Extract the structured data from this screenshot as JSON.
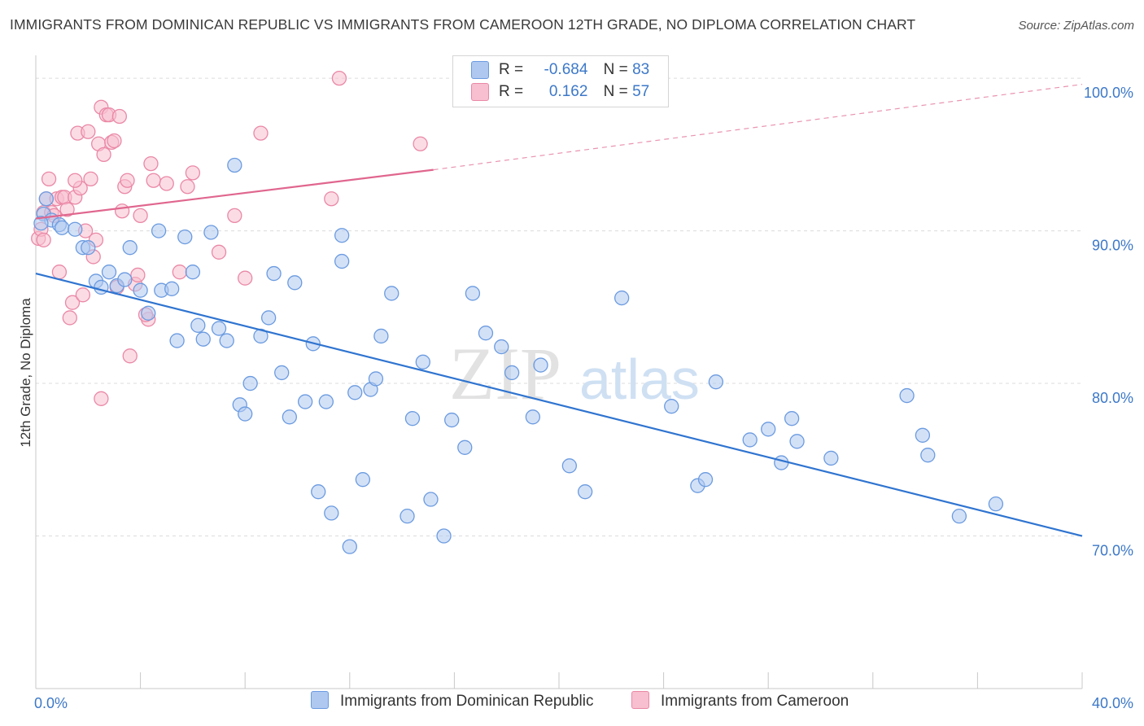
{
  "title": "IMMIGRANTS FROM DOMINICAN REPUBLIC VS IMMIGRANTS FROM CAMEROON 12TH GRADE, NO DIPLOMA CORRELATION CHART",
  "source": "Source: ZipAtlas.com",
  "watermark": {
    "zip": "ZIP",
    "atlas": "atlas"
  },
  "colors": {
    "blue_fill": "#aec8f0",
    "blue_stroke": "#6b9be0",
    "blue_line": "#2f74d0",
    "pink_fill": "#f7bfcf",
    "pink_stroke": "#ea88a6",
    "pink_line": "#e0668e",
    "axis_label": "#3c78c8",
    "grid": "#dcdcdc"
  },
  "legend": {
    "r_label": "R =",
    "n_label": "N =",
    "series": [
      {
        "r": "-0.684",
        "n": "83"
      },
      {
        "r": "0.162",
        "n": "57"
      }
    ]
  },
  "chart_data": {
    "type": "scatter",
    "title": "IMMIGRANTS FROM DOMINICAN REPUBLIC VS IMMIGRANTS FROM CAMEROON 12TH GRADE, NO DIPLOMA CORRELATION CHART",
    "xlabel": "",
    "ylabel": "12th Grade, No Diploma",
    "xlim": [
      0,
      40
    ],
    "ylim": [
      60,
      101.5
    ],
    "x_tick_labels": [
      "0.0%",
      "40.0%"
    ],
    "y_ticks": [
      70,
      80,
      90,
      100
    ],
    "y_tick_labels": [
      "70.0%",
      "80.0%",
      "90.0%",
      "100.0%"
    ],
    "grid": true,
    "legend_position": "top-center and bottom",
    "series": [
      {
        "name": "Immigrants from Dominican Republic",
        "r": -0.684,
        "n": 83,
        "trend": {
          "x": [
            0,
            40
          ],
          "y": [
            87.2,
            70.0
          ],
          "style": "solid"
        },
        "points": [
          [
            0.3,
            91.1
          ],
          [
            0.4,
            92.1
          ],
          [
            0.6,
            90.7
          ],
          [
            0.9,
            90.4
          ],
          [
            1.0,
            90.2
          ],
          [
            1.5,
            90.1
          ],
          [
            1.8,
            88.9
          ],
          [
            2.0,
            88.9
          ],
          [
            2.3,
            86.7
          ],
          [
            2.5,
            86.3
          ],
          [
            2.8,
            87.3
          ],
          [
            3.1,
            86.4
          ],
          [
            3.4,
            86.8
          ],
          [
            3.6,
            88.9
          ],
          [
            4.0,
            86.1
          ],
          [
            4.3,
            84.6
          ],
          [
            4.7,
            90.0
          ],
          [
            4.8,
            86.1
          ],
          [
            5.2,
            86.2
          ],
          [
            5.4,
            82.8
          ],
          [
            5.7,
            89.6
          ],
          [
            6.0,
            87.3
          ],
          [
            6.2,
            83.8
          ],
          [
            6.4,
            82.9
          ],
          [
            6.7,
            89.9
          ],
          [
            7.0,
            83.6
          ],
          [
            7.3,
            82.8
          ],
          [
            7.6,
            94.3
          ],
          [
            7.8,
            78.6
          ],
          [
            8.0,
            78.0
          ],
          [
            8.2,
            80.0
          ],
          [
            8.6,
            83.1
          ],
          [
            8.9,
            84.3
          ],
          [
            9.1,
            87.2
          ],
          [
            9.4,
            80.7
          ],
          [
            9.7,
            77.8
          ],
          [
            9.9,
            86.6
          ],
          [
            10.3,
            78.8
          ],
          [
            10.6,
            82.6
          ],
          [
            10.8,
            72.9
          ],
          [
            11.1,
            78.8
          ],
          [
            11.3,
            71.5
          ],
          [
            11.7,
            89.7
          ],
          [
            11.7,
            88.0
          ],
          [
            12.0,
            69.3
          ],
          [
            12.2,
            79.4
          ],
          [
            12.5,
            73.7
          ],
          [
            12.8,
            79.6
          ],
          [
            13.0,
            80.3
          ],
          [
            13.2,
            83.1
          ],
          [
            13.6,
            85.9
          ],
          [
            14.2,
            71.3
          ],
          [
            14.4,
            77.7
          ],
          [
            14.8,
            81.4
          ],
          [
            15.1,
            72.4
          ],
          [
            15.6,
            70.0
          ],
          [
            15.9,
            77.6
          ],
          [
            16.4,
            75.8
          ],
          [
            16.7,
            85.9
          ],
          [
            17.2,
            83.3
          ],
          [
            17.8,
            82.4
          ],
          [
            18.2,
            80.7
          ],
          [
            19.0,
            77.8
          ],
          [
            19.3,
            81.2
          ],
          [
            20.4,
            74.6
          ],
          [
            21.0,
            72.9
          ],
          [
            22.4,
            85.6
          ],
          [
            24.3,
            78.5
          ],
          [
            25.3,
            73.3
          ],
          [
            25.6,
            73.7
          ],
          [
            26.0,
            80.1
          ],
          [
            27.3,
            76.3
          ],
          [
            28.0,
            77.0
          ],
          [
            28.5,
            74.8
          ],
          [
            28.9,
            77.7
          ],
          [
            29.1,
            76.2
          ],
          [
            30.4,
            75.1
          ],
          [
            33.3,
            79.2
          ],
          [
            33.9,
            76.6
          ],
          [
            34.1,
            75.3
          ],
          [
            35.3,
            71.3
          ],
          [
            36.7,
            72.1
          ],
          [
            0.2,
            90.5
          ]
        ]
      },
      {
        "name": "Immigrants from Cameroon",
        "r": 0.162,
        "n": 57,
        "trend": {
          "x": [
            0,
            15.2,
            40
          ],
          "y": [
            90.8,
            94.0,
            99.6
          ],
          "style": "solid-then-dashed"
        },
        "points": [
          [
            0.1,
            89.5
          ],
          [
            0.2,
            90.1
          ],
          [
            0.3,
            91.2
          ],
          [
            0.4,
            92.1
          ],
          [
            0.5,
            93.4
          ],
          [
            0.6,
            91.2
          ],
          [
            0.7,
            91.0
          ],
          [
            0.8,
            92.1
          ],
          [
            0.9,
            87.3
          ],
          [
            1.0,
            92.2
          ],
          [
            1.1,
            92.2
          ],
          [
            1.2,
            91.4
          ],
          [
            1.3,
            84.3
          ],
          [
            1.4,
            85.3
          ],
          [
            1.5,
            92.2
          ],
          [
            1.6,
            96.4
          ],
          [
            1.7,
            92.8
          ],
          [
            1.8,
            85.8
          ],
          [
            1.9,
            90.0
          ],
          [
            2.0,
            96.5
          ],
          [
            2.1,
            93.4
          ],
          [
            2.2,
            88.3
          ],
          [
            2.3,
            89.4
          ],
          [
            2.4,
            95.7
          ],
          [
            2.5,
            98.1
          ],
          [
            2.6,
            95.0
          ],
          [
            2.7,
            97.6
          ],
          [
            2.8,
            97.6
          ],
          [
            2.9,
            95.8
          ],
          [
            3.0,
            95.9
          ],
          [
            3.2,
            97.5
          ],
          [
            3.3,
            91.3
          ],
          [
            3.4,
            92.9
          ],
          [
            3.5,
            93.3
          ],
          [
            3.6,
            81.8
          ],
          [
            3.8,
            86.5
          ],
          [
            3.9,
            87.1
          ],
          [
            4.0,
            91.0
          ],
          [
            4.3,
            84.2
          ],
          [
            4.4,
            94.4
          ],
          [
            4.5,
            93.3
          ],
          [
            5.0,
            93.1
          ],
          [
            5.5,
            87.3
          ],
          [
            5.8,
            92.9
          ],
          [
            6.0,
            93.8
          ],
          [
            7.0,
            88.6
          ],
          [
            7.6,
            91.0
          ],
          [
            8.0,
            86.9
          ],
          [
            8.6,
            96.4
          ],
          [
            11.3,
            92.1
          ],
          [
            11.6,
            100.0
          ],
          [
            14.7,
            95.7
          ],
          [
            2.5,
            79.0
          ],
          [
            0.3,
            89.4
          ],
          [
            1.5,
            93.3
          ],
          [
            3.1,
            86.3
          ],
          [
            4.2,
            84.5
          ]
        ]
      }
    ]
  }
}
